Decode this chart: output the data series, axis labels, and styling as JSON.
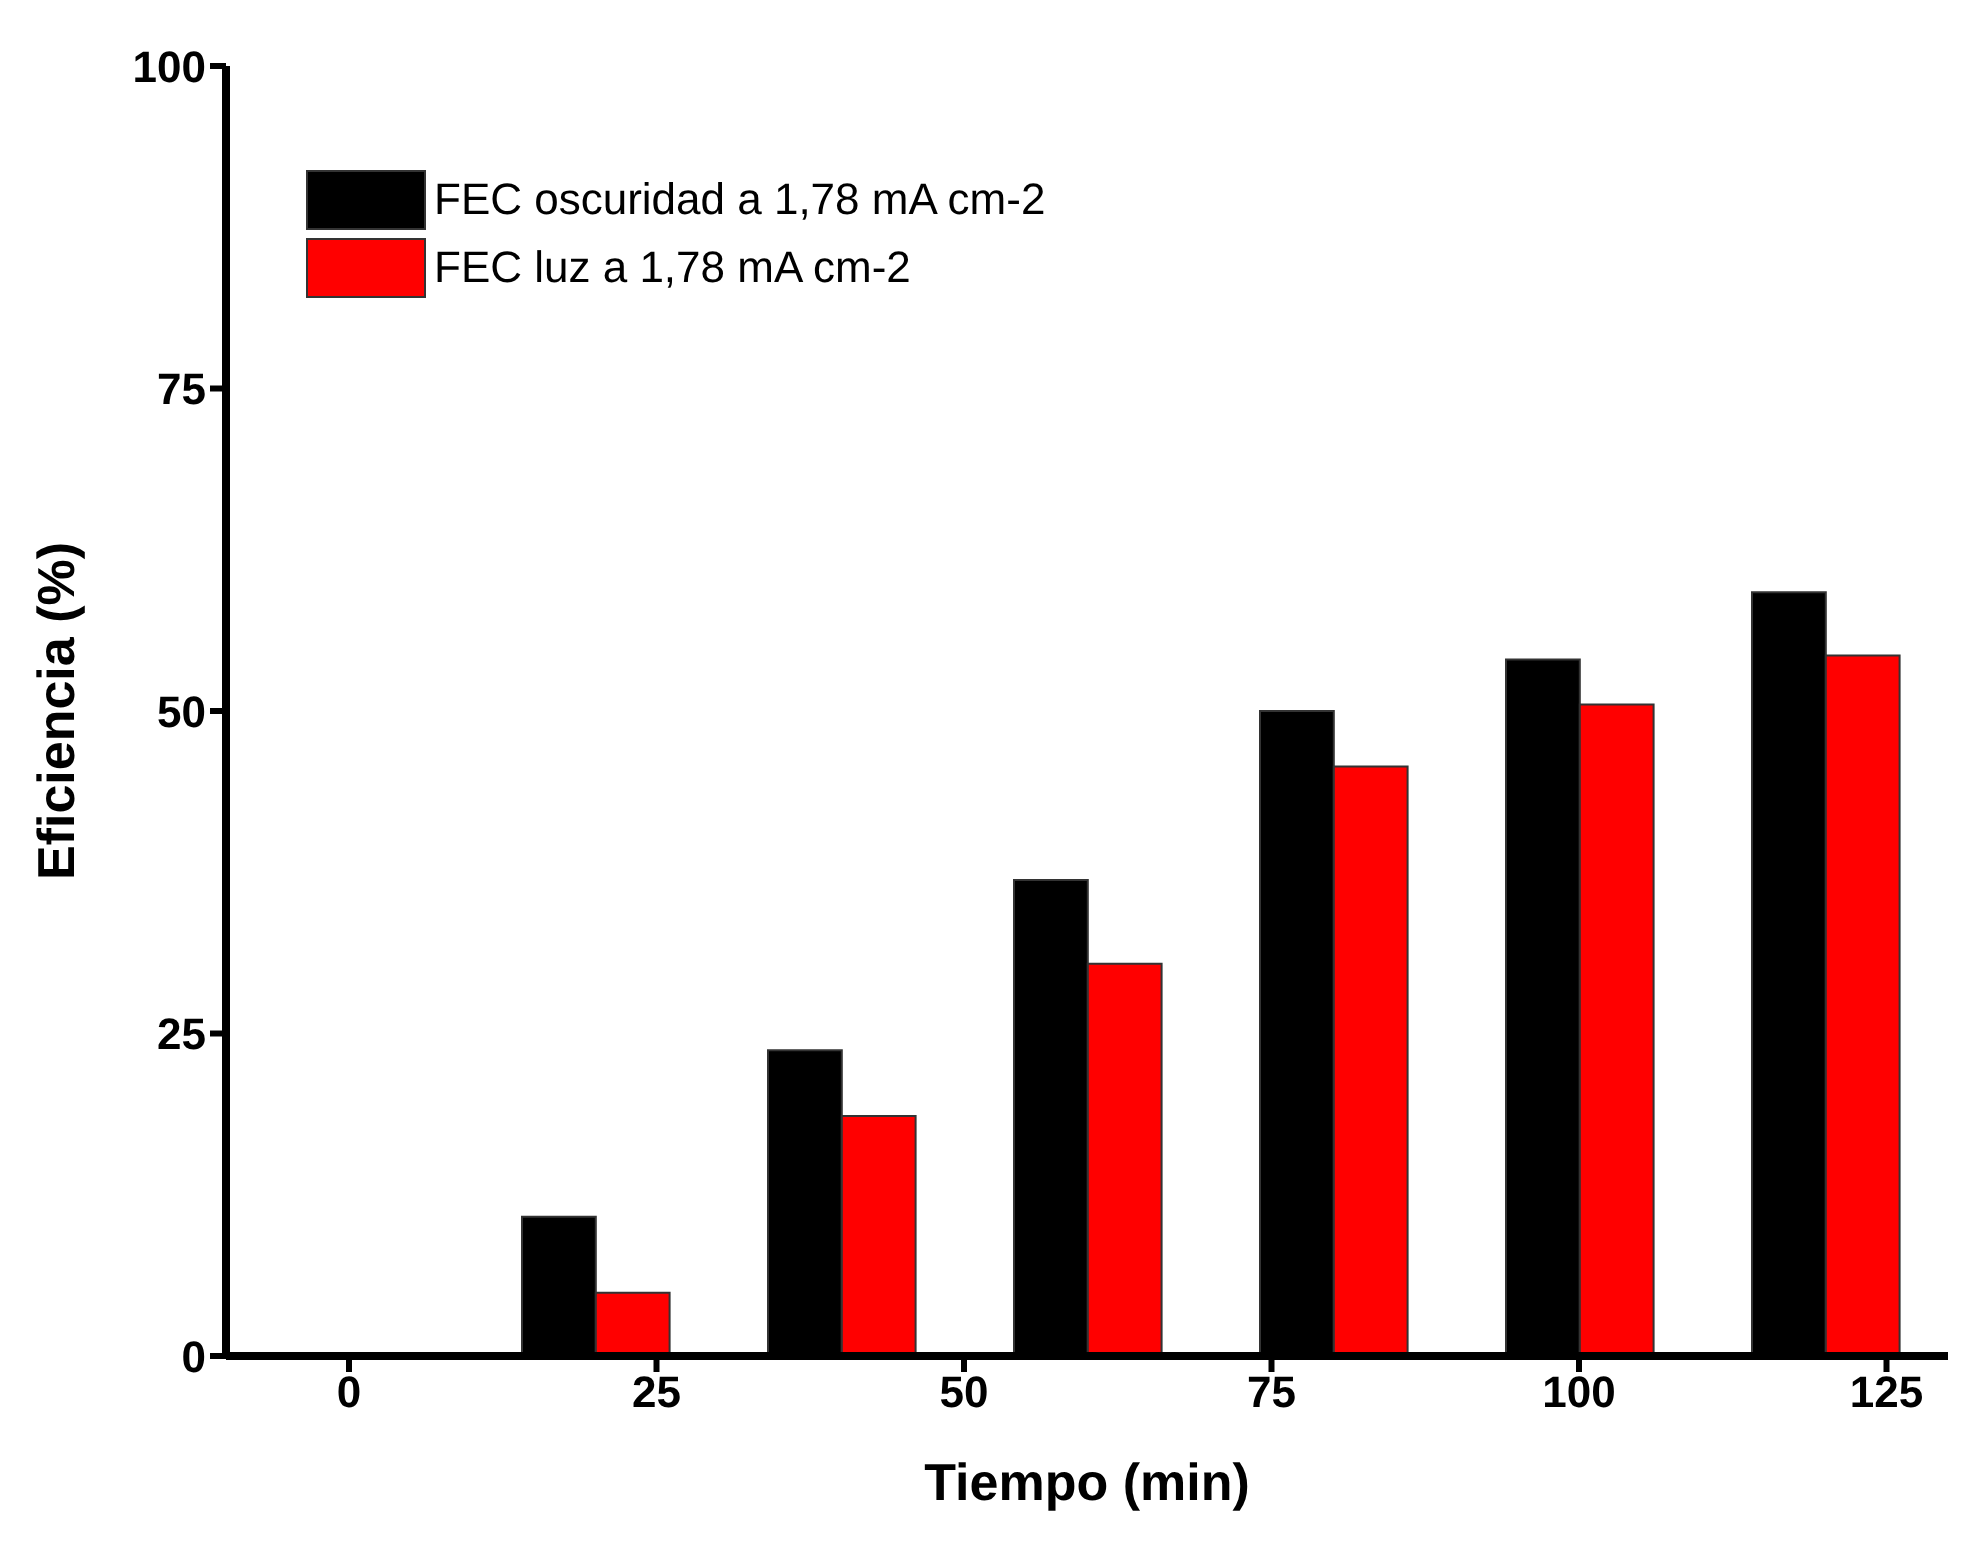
{
  "chart_data": {
    "type": "bar",
    "xlabel": "Tiempo (min)",
    "ylabel": "Eficiencia (%)",
    "x": [
      20,
      40,
      60,
      80,
      100,
      120
    ],
    "series": [
      {
        "name": "FEC oscuridad a 1,78 mA cm-2",
        "color": "#000000",
        "values": [
          10.8,
          23.7,
          36.9,
          50.0,
          54.0,
          59.2
        ]
      },
      {
        "name": "FEC luz a 1,78 mA cm-2",
        "color": "#ff0000",
        "values": [
          4.9,
          18.6,
          30.4,
          45.7,
          50.5,
          54.3
        ]
      }
    ],
    "xlim": [
      -10,
      130
    ],
    "xticks": [
      0,
      25,
      50,
      75,
      100,
      125
    ],
    "ylim": [
      0,
      100
    ],
    "yticks": [
      0,
      25,
      50,
      75,
      100
    ],
    "grid": false,
    "legend": "top left"
  }
}
